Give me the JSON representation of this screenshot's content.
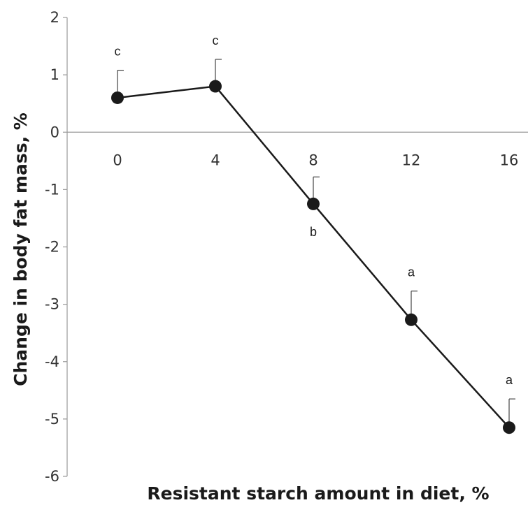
{
  "chart_data": {
    "type": "line",
    "title": "",
    "xlabel": "Resistant starch amount in diet, %",
    "ylabel": "Change in body fat mass, %",
    "x": [
      0,
      4,
      8,
      12,
      16
    ],
    "x_tick_labels": [
      "0",
      "4",
      "8",
      "12",
      "16"
    ],
    "y_tick_labels": [
      "2",
      "1",
      "0",
      "-1",
      "-2",
      "-3",
      "-4",
      "-5",
      "-6"
    ],
    "ylim": [
      -6,
      2
    ],
    "grid": false,
    "series": [
      {
        "values": [
          0.6,
          0.8,
          -1.25,
          -3.27,
          -5.15
        ],
        "error_upper": [
          0.48,
          0.47,
          0.47,
          0.5,
          0.5
        ],
        "significance_labels": [
          "c",
          "c",
          "b",
          "a",
          "a"
        ],
        "color": "#1a1a1a"
      }
    ]
  }
}
